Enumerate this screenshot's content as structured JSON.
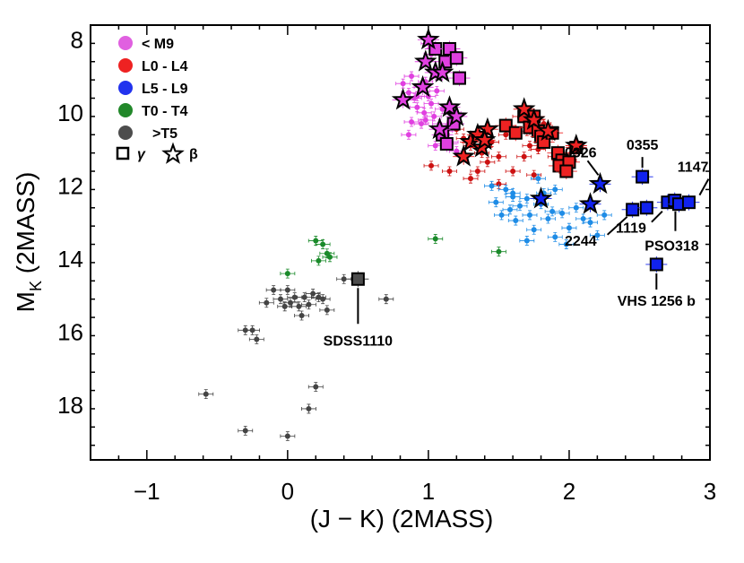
{
  "chart_data": {
    "type": "scatter",
    "title": "",
    "xlabel": "(J − K) (2MASS)",
    "ylabel_main": "M",
    "ylabel_sub": "K",
    "ylabel_suffix": " (2MASS)",
    "xlim": [
      -1.4,
      3.0
    ],
    "ylim": [
      19.5,
      7.6
    ],
    "xticks": [
      -1,
      0,
      1,
      2,
      3
    ],
    "xtick_labels": [
      "−1",
      "0",
      "1",
      "2",
      "3"
    ],
    "yticks": [
      8,
      10,
      12,
      14,
      16,
      18
    ],
    "ytick_labels": [
      "8",
      "10",
      "12",
      "14",
      "16",
      "18"
    ],
    "y_inverted": true,
    "legend": {
      "placement": "top-left",
      "entries": [
        {
          "label": "< M9",
          "color": "#e060e0",
          "marker": "circle"
        },
        {
          "label": "L0 - L4",
          "color": "#ee2222",
          "marker": "circle"
        },
        {
          "label": "L5 - L9",
          "color": "#2233ee",
          "marker": "circle"
        },
        {
          "label": "T0 - T4",
          "color": "#22882a",
          "marker": "circle"
        },
        {
          "label": ">T5",
          "color": "#4d4d4d",
          "marker": "circle"
        }
      ],
      "markers": [
        {
          "label": "γ",
          "marker": "square"
        },
        {
          "label": "β",
          "marker": "star"
        }
      ]
    },
    "series": [
      {
        "name": "field < M9",
        "color": "#e040e0",
        "marker": "dot",
        "points": [
          [
            0.82,
            9.2
          ],
          [
            0.86,
            9.45
          ],
          [
            0.88,
            9.0
          ],
          [
            0.9,
            9.6
          ],
          [
            0.92,
            9.85
          ],
          [
            0.95,
            9.3
          ],
          [
            0.97,
            10.0
          ],
          [
            0.98,
            9.15
          ],
          [
            1.0,
            9.55
          ],
          [
            1.02,
            9.75
          ],
          [
            1.04,
            10.1
          ],
          [
            1.06,
            9.4
          ],
          [
            1.08,
            10.3
          ],
          [
            1.1,
            10.6
          ],
          [
            1.12,
            10.5
          ],
          [
            1.14,
            10.35
          ],
          [
            1.16,
            10.8
          ],
          [
            1.05,
            10.9
          ],
          [
            0.98,
            10.2
          ],
          [
            1.2,
            11.05
          ],
          [
            0.88,
            10.25
          ],
          [
            0.86,
            10.6
          ],
          [
            1.18,
            10.0
          ],
          [
            0.92,
            9.55
          ],
          [
            1.0,
            8.1
          ],
          [
            1.02,
            8.4
          ],
          [
            1.1,
            9.9
          ],
          [
            0.95,
            10.3
          ]
        ]
      },
      {
        "name": "field L0 - L4",
        "color": "#cc1111",
        "marker": "dot",
        "points": [
          [
            1.2,
            10.45
          ],
          [
            1.25,
            10.7
          ],
          [
            1.3,
            10.9
          ],
          [
            1.38,
            11.1
          ],
          [
            1.42,
            11.35
          ],
          [
            1.5,
            11.2
          ],
          [
            1.55,
            10.6
          ],
          [
            1.6,
            11.6
          ],
          [
            1.65,
            10.1
          ],
          [
            1.7,
            10.5
          ],
          [
            1.72,
            10.9
          ],
          [
            1.78,
            11.0
          ],
          [
            1.82,
            10.3
          ],
          [
            1.85,
            10.7
          ],
          [
            1.9,
            11.2
          ],
          [
            1.95,
            11.1
          ],
          [
            2.0,
            11.3
          ],
          [
            2.05,
            10.9
          ],
          [
            1.75,
            11.7
          ],
          [
            1.5,
            11.95
          ],
          [
            1.15,
            11.6
          ],
          [
            1.3,
            11.8
          ],
          [
            1.45,
            10.8
          ],
          [
            1.68,
            11.2
          ],
          [
            1.35,
            11.6
          ],
          [
            1.02,
            11.45
          ]
        ]
      },
      {
        "name": "field L5 - L9",
        "color": "#1e8ce6",
        "marker": "dot",
        "points": [
          [
            1.45,
            12.0
          ],
          [
            1.48,
            12.45
          ],
          [
            1.52,
            12.8
          ],
          [
            1.55,
            12.1
          ],
          [
            1.58,
            12.65
          ],
          [
            1.6,
            12.3
          ],
          [
            1.62,
            12.95
          ],
          [
            1.65,
            12.55
          ],
          [
            1.7,
            12.35
          ],
          [
            1.72,
            12.8
          ],
          [
            1.75,
            13.2
          ],
          [
            1.8,
            12.5
          ],
          [
            1.82,
            12.2
          ],
          [
            1.85,
            12.9
          ],
          [
            1.88,
            12.7
          ],
          [
            1.9,
            13.4
          ],
          [
            1.95,
            12.75
          ],
          [
            2.0,
            13.15
          ],
          [
            2.05,
            12.6
          ],
          [
            2.1,
            12.9
          ],
          [
            2.15,
            13.0
          ],
          [
            2.2,
            13.35
          ],
          [
            2.25,
            12.8
          ],
          [
            1.6,
            12.2
          ],
          [
            1.7,
            13.5
          ],
          [
            1.78,
            11.8
          ],
          [
            1.9,
            12.1
          ],
          [
            1.98,
            13.6
          ]
        ]
      },
      {
        "name": "field T0 - T4",
        "color": "#1a8a2a",
        "marker": "dot",
        "points": [
          [
            0.2,
            13.5
          ],
          [
            0.28,
            13.85
          ],
          [
            0.3,
            13.95
          ],
          [
            0.22,
            14.05
          ],
          [
            0.0,
            14.4
          ],
          [
            1.05,
            13.45
          ],
          [
            1.5,
            13.8
          ],
          [
            0.25,
            13.6
          ]
        ]
      },
      {
        "name": "field >T5",
        "color": "#444444",
        "marker": "dot",
        "points": [
          [
            -0.1,
            14.85
          ],
          [
            -0.05,
            15.1
          ],
          [
            0.0,
            14.85
          ],
          [
            0.02,
            15.2
          ],
          [
            0.05,
            15.05
          ],
          [
            0.08,
            15.3
          ],
          [
            0.1,
            15.55
          ],
          [
            0.12,
            15.05
          ],
          [
            0.15,
            15.25
          ],
          [
            0.18,
            14.95
          ],
          [
            0.22,
            15.05
          ],
          [
            0.25,
            15.1
          ],
          [
            0.28,
            15.4
          ],
          [
            -0.15,
            15.2
          ],
          [
            -0.02,
            15.3
          ],
          [
            0.4,
            14.55
          ],
          [
            0.7,
            15.1
          ],
          [
            -0.3,
            15.95
          ],
          [
            -0.25,
            15.95
          ],
          [
            -0.22,
            16.2
          ],
          [
            -0.58,
            17.7
          ],
          [
            0.2,
            17.5
          ],
          [
            0.15,
            18.1
          ],
          [
            -0.3,
            18.7
          ],
          [
            0.0,
            18.85
          ]
        ]
      },
      {
        "name": "young < M9 (γ)",
        "color": "#e040e0",
        "marker": "square",
        "points": [
          [
            1.05,
            8.25
          ],
          [
            1.12,
            8.6
          ],
          [
            1.15,
            8.25
          ],
          [
            1.2,
            8.5
          ],
          [
            1.22,
            9.05
          ],
          [
            1.18,
            10.3
          ],
          [
            1.1,
            10.6
          ],
          [
            1.13,
            10.85
          ]
        ]
      },
      {
        "name": "young < M9 (β)",
        "color": "#e040e0",
        "marker": "star",
        "points": [
          [
            1.0,
            8.0
          ],
          [
            0.98,
            8.6
          ],
          [
            1.05,
            8.9
          ],
          [
            1.1,
            8.9
          ],
          [
            0.96,
            9.3
          ],
          [
            0.82,
            9.65
          ],
          [
            1.15,
            9.85
          ],
          [
            1.2,
            10.1
          ],
          [
            1.08,
            10.45
          ]
        ]
      },
      {
        "name": "young L0 - L4 (γ)",
        "color": "#ee2222",
        "marker": "square",
        "points": [
          [
            1.55,
            10.35
          ],
          [
            1.62,
            10.55
          ],
          [
            1.68,
            10.1
          ],
          [
            1.72,
            10.4
          ],
          [
            1.75,
            10.1
          ],
          [
            1.78,
            10.5
          ],
          [
            1.8,
            10.65
          ],
          [
            1.82,
            10.8
          ],
          [
            1.88,
            10.55
          ],
          [
            1.92,
            11.1
          ],
          [
            1.95,
            11.3
          ],
          [
            1.93,
            11.45
          ],
          [
            2.0,
            11.35
          ],
          [
            2.05,
            10.95
          ],
          [
            1.98,
            11.6
          ]
        ]
      },
      {
        "name": "young L0 - L4 (β)",
        "color": "#ee2222",
        "marker": "star",
        "points": [
          [
            1.3,
            10.8
          ],
          [
            1.35,
            10.6
          ],
          [
            1.38,
            10.95
          ],
          [
            1.42,
            10.45
          ],
          [
            1.25,
            11.2
          ],
          [
            1.68,
            9.9
          ],
          [
            1.75,
            10.2
          ],
          [
            1.85,
            10.5
          ],
          [
            2.05,
            10.9
          ],
          [
            1.4,
            10.75
          ]
        ]
      },
      {
        "name": "young L5 - L9 (γ)",
        "color": "#1122ee",
        "marker": "square",
        "points": [
          [
            2.45,
            12.65
          ],
          [
            2.55,
            12.6
          ],
          [
            2.52,
            11.75
          ],
          [
            2.7,
            12.45
          ],
          [
            2.75,
            12.4
          ],
          [
            2.78,
            12.5
          ],
          [
            2.85,
            12.45
          ],
          [
            2.62,
            14.15
          ]
        ]
      },
      {
        "name": "young L5 - L9 (β)",
        "color": "#1122ee",
        "marker": "star",
        "points": [
          [
            2.22,
            11.95
          ],
          [
            1.8,
            12.35
          ],
          [
            2.15,
            12.5
          ]
        ]
      },
      {
        "name": "SDSS1110",
        "color": "#4d4d4d",
        "marker": "square",
        "points": [
          [
            0.5,
            14.55
          ]
        ]
      }
    ],
    "annotations": [
      {
        "text": "0326",
        "x": 2.22,
        "y": 11.95
      },
      {
        "text": "0355",
        "x": 2.52,
        "y": 11.75
      },
      {
        "text": "1147",
        "x": 2.85,
        "y": 12.45
      },
      {
        "text": "1119",
        "x": 2.7,
        "y": 12.45
      },
      {
        "text": "2244",
        "x": 2.45,
        "y": 12.65
      },
      {
        "text": "PSO318",
        "x": 2.78,
        "y": 12.5
      },
      {
        "text": "VHS 1256 b",
        "x": 2.62,
        "y": 14.15
      },
      {
        "text": "SDSS1110",
        "x": 0.5,
        "y": 14.55
      }
    ]
  }
}
